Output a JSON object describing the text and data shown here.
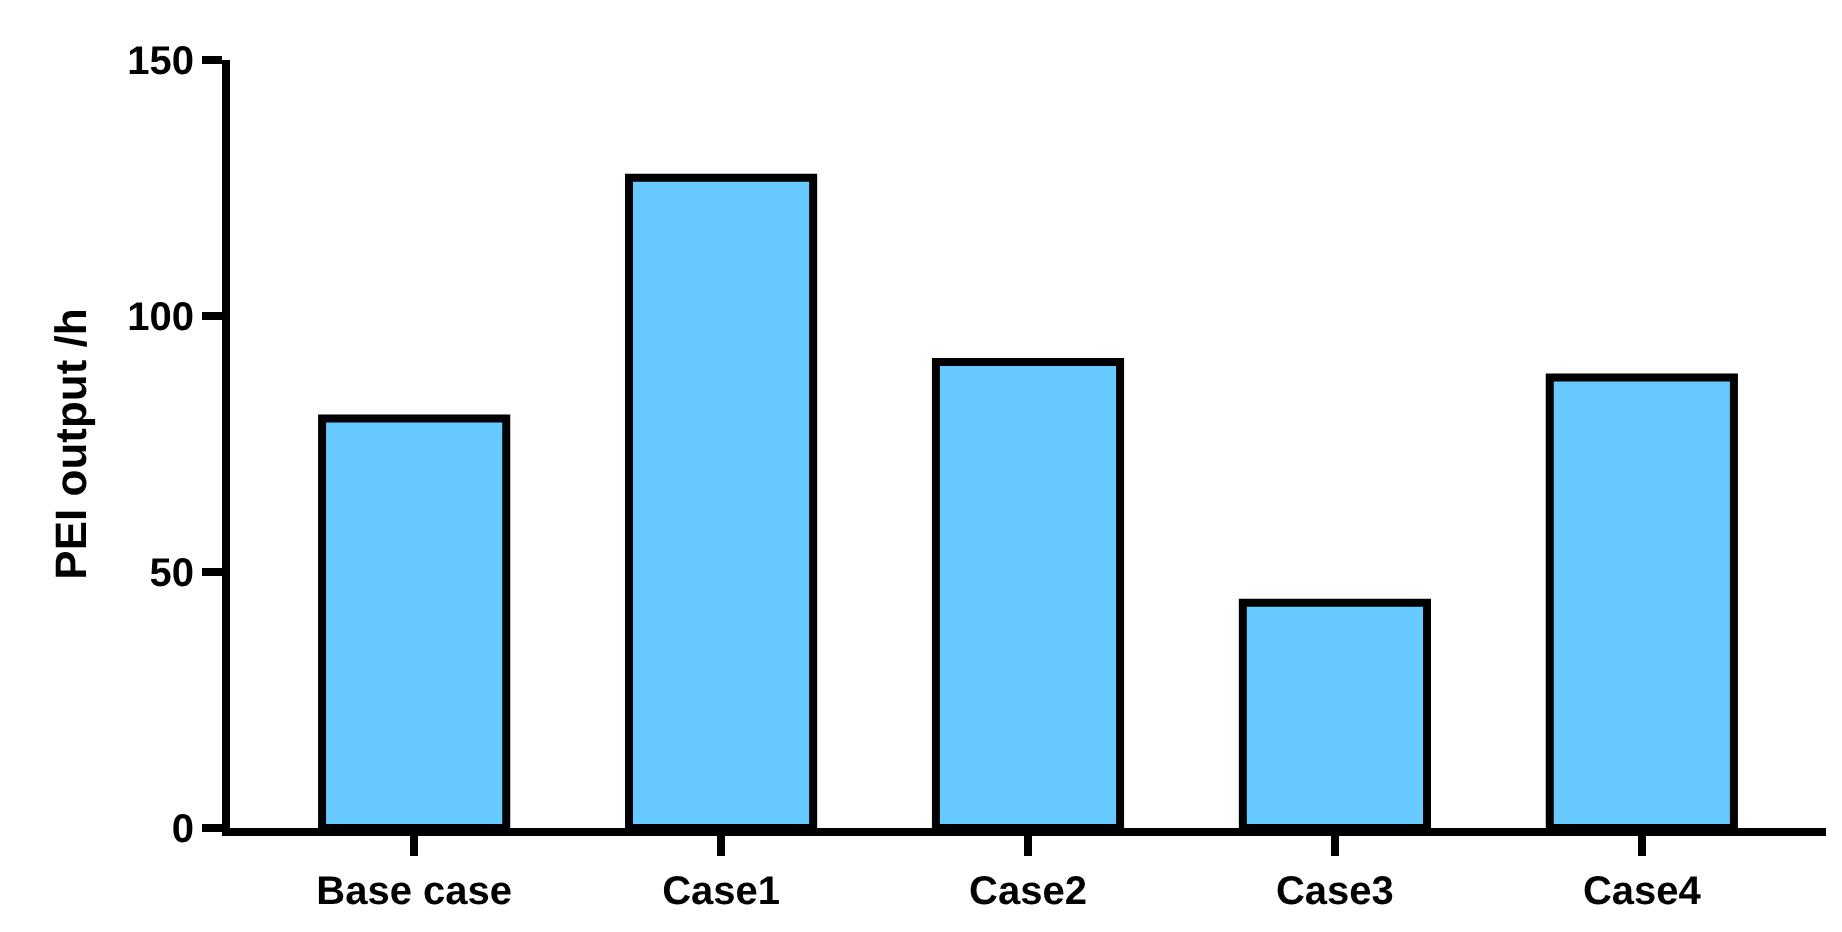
{
  "chart_data": {
    "type": "bar",
    "ylabel": "PEI output /h",
    "categories": [
      "Base case",
      "Case1",
      "Case2",
      "Case3",
      "Case4"
    ],
    "values": [
      80,
      127,
      91,
      44,
      88
    ],
    "color": "#66c9ff",
    "ylim": [
      0,
      150
    ],
    "yticks": [
      0,
      50,
      100,
      150
    ]
  }
}
